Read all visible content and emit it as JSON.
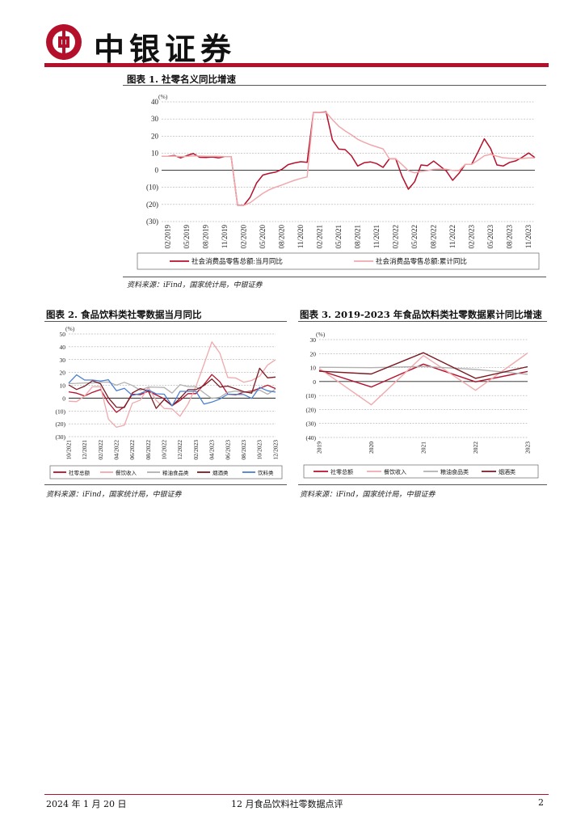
{
  "header": {
    "brand": "中银证券",
    "accent": "#b5102b"
  },
  "figures": [
    {
      "title": "图表 1. 社零名义同比增速",
      "source": "资料来源：iFind，国家统计局，中银证券"
    },
    {
      "title": "图表 2. 食品饮料类社零数据当月同比",
      "source": "资料来源：iFind，国家统计局，中银证券"
    },
    {
      "title": "图表 3. 2019-2023 年食品饮料类社零数据累计同比增速",
      "source": "资料来源：iFind，国家统计局，中银证券"
    }
  ],
  "footer": {
    "date": "2024 年 1 月 20 日",
    "doc_title": "12 月食品饮料社零数据点评",
    "page": "2"
  },
  "chart_data": [
    {
      "type": "line",
      "unit": "(%)",
      "ylim": [
        -30,
        40
      ],
      "yticks": [
        -30,
        -20,
        -10,
        0,
        10,
        20,
        30,
        40
      ],
      "ytick_labels": [
        "(30)",
        "(20)",
        "(10)",
        "0",
        "10",
        "20",
        "30",
        "40"
      ],
      "categories": [
        "01/2019",
        "02/2019",
        "03/2019",
        "04/2019",
        "05/2019",
        "06/2019",
        "07/2019",
        "08/2019",
        "09/2019",
        "10/2019",
        "11/2019",
        "12/2019",
        "01/2020",
        "02/2020",
        "03/2020",
        "04/2020",
        "05/2020",
        "06/2020",
        "07/2020",
        "08/2020",
        "09/2020",
        "10/2020",
        "11/2020",
        "12/2020",
        "01/2021",
        "02/2021",
        "03/2021",
        "04/2021",
        "05/2021",
        "06/2021",
        "07/2021",
        "08/2021",
        "09/2021",
        "10/2021",
        "11/2021",
        "12/2021",
        "01/2022",
        "02/2022",
        "03/2022",
        "04/2022",
        "05/2022",
        "06/2022",
        "07/2022",
        "08/2022",
        "09/2022",
        "10/2022",
        "11/2022",
        "12/2022",
        "01/2023",
        "02/2023",
        "03/2023",
        "04/2023",
        "05/2023",
        "06/2023",
        "07/2023",
        "08/2023",
        "09/2023",
        "10/2023",
        "11/2023",
        "12/2023"
      ],
      "xtick_labels": [
        "02/2019",
        "05/2019",
        "08/2019",
        "11/2019",
        "02/2020",
        "05/2020",
        "08/2020",
        "11/2020",
        "02/2021",
        "05/2021",
        "08/2021",
        "11/2021",
        "02/2022",
        "05/2022",
        "08/2022",
        "11/2022",
        "02/2023",
        "05/2023",
        "08/2023",
        "11/2023"
      ],
      "series": [
        {
          "name": "社会消费品零售总额:当月同比",
          "color": "#b5102b",
          "values": [
            8.2,
            8.2,
            8.7,
            7.2,
            8.6,
            9.8,
            7.6,
            7.5,
            7.8,
            7.2,
            8.0,
            8.0,
            -20.5,
            -20.5,
            -15.8,
            -7.5,
            -2.8,
            -1.8,
            -1.1,
            0.5,
            3.3,
            4.3,
            5.0,
            4.6,
            33.8,
            33.8,
            34.2,
            17.7,
            12.4,
            12.1,
            8.5,
            2.5,
            4.4,
            4.9,
            3.9,
            1.7,
            6.7,
            6.7,
            -3.5,
            -11.1,
            -6.7,
            3.1,
            2.7,
            5.4,
            2.5,
            -0.5,
            -5.9,
            -1.8,
            3.5,
            3.5,
            10.6,
            18.4,
            12.7,
            3.1,
            2.5,
            4.6,
            5.5,
            7.6,
            10.1,
            7.4
          ]
        },
        {
          "name": "社会消费品零售总额:累计同比",
          "color": "#f0a8ab",
          "values": [
            8.2,
            8.2,
            8.3,
            8.0,
            8.1,
            8.4,
            8.3,
            8.2,
            8.2,
            8.1,
            8.0,
            8.0,
            -20.5,
            -20.5,
            -19.0,
            -16.2,
            -13.5,
            -11.4,
            -9.9,
            -8.6,
            -7.2,
            -5.9,
            -4.8,
            -3.9,
            33.8,
            33.8,
            33.9,
            29.6,
            25.7,
            23.0,
            20.7,
            18.1,
            16.4,
            14.9,
            13.7,
            12.5,
            6.7,
            6.7,
            3.3,
            -0.2,
            -1.5,
            -0.7,
            -0.2,
            0.5,
            0.7,
            0.6,
            -0.1,
            -0.2,
            3.5,
            3.5,
            5.8,
            8.5,
            9.3,
            8.2,
            7.3,
            7.0,
            6.8,
            6.9,
            7.2,
            7.2
          ]
        }
      ]
    },
    {
      "type": "line",
      "unit": "(%)",
      "ylim": [
        -30,
        50
      ],
      "yticks": [
        -30,
        -20,
        -10,
        0,
        10,
        20,
        30,
        40,
        50
      ],
      "ytick_labels": [
        "(30)",
        "(20)",
        "(10)",
        "0",
        "10",
        "20",
        "30",
        "40",
        "50"
      ],
      "categories": [
        "10/2021",
        "11/2021",
        "12/2021",
        "01/2022",
        "02/2022",
        "03/2022",
        "04/2022",
        "05/2022",
        "06/2022",
        "07/2022",
        "08/2022",
        "09/2022",
        "10/2022",
        "11/2022",
        "12/2022",
        "01/2023",
        "02/2023",
        "03/2023",
        "04/2023",
        "05/2023",
        "06/2023",
        "07/2023",
        "08/2023",
        "09/2023",
        "10/2023",
        "11/2023",
        "12/2023"
      ],
      "xtick_labels": [
        "10/2021",
        "12/2021",
        "02/2022",
        "04/2022",
        "06/2022",
        "08/2022",
        "10/2022",
        "12/2022",
        "02/2023",
        "04/2023",
        "06/2023",
        "08/2023",
        "10/2023",
        "12/2023"
      ],
      "series": [
        {
          "name": "社零总额",
          "color": "#b5102b",
          "values": [
            4.9,
            3.9,
            1.7,
            4.5,
            6.7,
            -3.5,
            -11.1,
            -6.7,
            3.1,
            2.7,
            5.4,
            2.5,
            -0.5,
            -5.9,
            -1.8,
            3.5,
            3.5,
            10.6,
            18.4,
            12.7,
            3.1,
            2.5,
            4.6,
            5.5,
            7.6,
            10.1,
            7.4
          ]
        },
        {
          "name": "餐饮收入",
          "color": "#f0a8ab",
          "values": [
            -2.4,
            -2.7,
            1.6,
            8.9,
            8.9,
            -16.4,
            -22.7,
            -21.1,
            -4.0,
            -1.5,
            8.4,
            -1.7,
            -8.1,
            -8.4,
            -14.1,
            -4.6,
            9.2,
            26.3,
            43.8,
            35.1,
            16.1,
            15.7,
            12.4,
            13.8,
            17.1,
            25.8,
            30.0
          ]
        },
        {
          "name": "粮油食品类",
          "color": "#b0b0b0",
          "values": [
            11.4,
            11.5,
            11.8,
            11.8,
            12.4,
            12.5,
            10.1,
            12.3,
            9.9,
            6.1,
            8.6,
            8.5,
            8.3,
            3.9,
            10.5,
            9.0,
            9.0,
            4.1,
            -0.3,
            0.7,
            4.5,
            5.5,
            4.5,
            4.8,
            6.3,
            3.0,
            7.0
          ]
        },
        {
          "name": "烟酒类",
          "color": "#7a1a22",
          "values": [
            10.3,
            6.7,
            9.3,
            13.5,
            11.2,
            0.2,
            -7.1,
            -7.3,
            4.1,
            7.4,
            5.6,
            -8.0,
            -1.1,
            -6.0,
            -0.1,
            6.6,
            6.6,
            9.8,
            14.9,
            8.6,
            9.4,
            7.2,
            5.0,
            3.9,
            23.3,
            15.8,
            16.4
          ]
        },
        {
          "name": "饮料类",
          "color": "#4a7fd0",
          "values": [
            11.7,
            18.1,
            14.1,
            14.1,
            13.3,
            14.3,
            5.8,
            7.7,
            2.1,
            3.6,
            6.3,
            3.4,
            3.1,
            -6.0,
            5.3,
            5.3,
            5.3,
            -4.6,
            -3.1,
            -0.7,
            3.1,
            2.9,
            2.8,
            -0.2,
            8.4,
            5.7,
            4.7
          ]
        }
      ]
    },
    {
      "type": "line",
      "unit": "(%)",
      "ylim": [
        -40,
        30
      ],
      "yticks": [
        -40,
        -30,
        -20,
        -10,
        0,
        10,
        20,
        30
      ],
      "ytick_labels": [
        "(40)",
        "(30)",
        "(20)",
        "(10)",
        "0",
        "10",
        "20",
        "30"
      ],
      "categories": [
        "2019",
        "2020",
        "2021",
        "2022",
        "2023"
      ],
      "series": [
        {
          "name": "社零总额",
          "color": "#b5102b",
          "values": [
            8.0,
            -3.9,
            12.5,
            -0.2,
            7.2
          ]
        },
        {
          "name": "餐饮收入",
          "color": "#f0a8ab",
          "values": [
            9.4,
            -16.6,
            18.6,
            -6.3,
            20.4
          ]
        },
        {
          "name": "粮油食品类",
          "color": "#b0b0b0",
          "values": [
            10.2,
            9.9,
            10.8,
            8.7,
            5.2
          ]
        },
        {
          "name": "烟酒类",
          "color": "#7a1a22",
          "values": [
            7.4,
            5.4,
            20.6,
            2.3,
            10.6
          ]
        }
      ]
    }
  ]
}
